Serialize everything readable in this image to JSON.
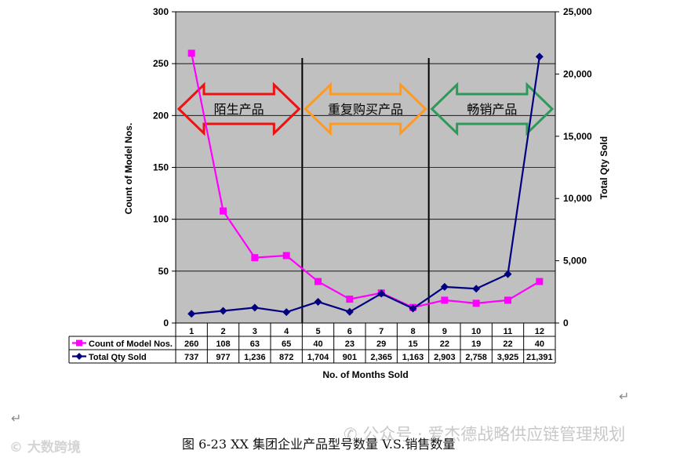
{
  "chart_data": {
    "type": "line",
    "categories": [
      "1",
      "2",
      "3",
      "4",
      "5",
      "6",
      "7",
      "8",
      "9",
      "10",
      "11",
      "12"
    ],
    "xlabel": "No. of Months Sold",
    "ylabel_left": "Count of Model Nos.",
    "ylabel_right": "Total Qty Sold",
    "ylim_left": [
      0,
      300
    ],
    "ylim_right": [
      0,
      25000
    ],
    "yticks_left": [
      "0",
      "50",
      "100",
      "150",
      "200",
      "250",
      "300"
    ],
    "yticks_right": [
      "0",
      "5,000",
      "10,000",
      "15,000",
      "20,000",
      "25,000"
    ],
    "grid": true,
    "series": [
      {
        "name": "Count of Model Nos.",
        "axis": "left",
        "color": "#ff00ff",
        "marker": "square",
        "values": [
          260,
          108,
          63,
          65,
          40,
          23,
          29,
          15,
          22,
          19,
          22,
          40
        ],
        "labels": [
          "260",
          "108",
          "63",
          "65",
          "40",
          "23",
          "29",
          "15",
          "22",
          "19",
          "22",
          "40"
        ]
      },
      {
        "name": "Total Qty Sold",
        "axis": "right",
        "color": "#000080",
        "marker": "diamond",
        "values": [
          737,
          977,
          1236,
          872,
          1704,
          901,
          2365,
          1163,
          2903,
          2758,
          3925,
          21391
        ],
        "labels": [
          "737",
          "977",
          "1,236",
          "872",
          "1,704",
          "901",
          "2,365",
          "1,163",
          "2,903",
          "2,758",
          "3,925",
          "21,391"
        ]
      }
    ],
    "annotations": [
      {
        "text": "陌生产品",
        "color": "#ee1111",
        "from_month": 1,
        "to_month": 4
      },
      {
        "text": "重复购买产品",
        "color": "#ff9922",
        "from_month": 5,
        "to_month": 8
      },
      {
        "text": "畅销产品",
        "color": "#2e9a5a",
        "from_month": 9,
        "to_month": 12
      }
    ],
    "dividers_after_month": [
      4,
      8
    ],
    "plot_bg": "#c0c0c0"
  },
  "caption": "图 6-23  XX 集团企业产品型号数量 V.S.销售数量",
  "watermark": "公众号 · 爱杰德战略供应链管理规划",
  "logo_text": "大数跨境"
}
